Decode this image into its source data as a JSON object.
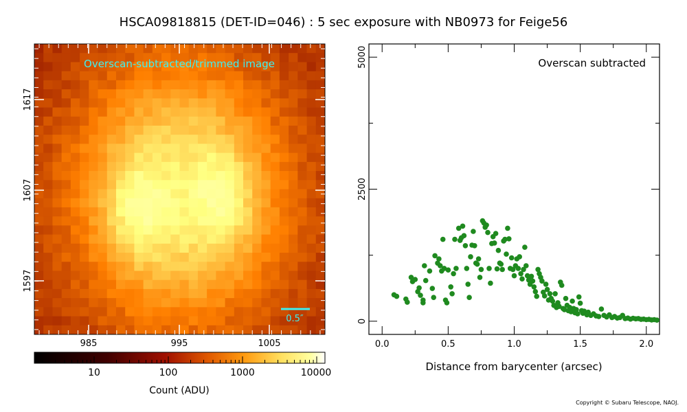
{
  "title": "HSCA09818815 (DET-ID=046) :  5 sec exposure with NB0973 for Feige56",
  "copyright": "Copyright © Subaru Telescope, NAOJ.",
  "image_panel": {
    "label": "Overscan-subtracted/trimmed image",
    "label_color": "#3ff0f0",
    "scale_bar_label": "0.5″",
    "x_ticks": [
      "985",
      "995",
      "1005"
    ],
    "y_ticks": [
      "1617",
      "1607",
      "1597"
    ],
    "colormap": "afmhot"
  },
  "colorbar": {
    "tick_labels": [
      "10",
      "100",
      "1000",
      "10000"
    ],
    "label": "Count (ADU)",
    "scale": "log"
  },
  "chart_data": {
    "type": "scatter",
    "annotation": "Overscan subtracted",
    "xlabel": "Distance from barycenter (arcsec)",
    "ylabel": "",
    "xlim": [
      -0.1,
      2.1
    ],
    "ylim": [
      -250,
      5250
    ],
    "x_ticks": [
      "0.0",
      "0.5",
      "1.0",
      "1.5",
      "2.0"
    ],
    "y_ticks": [
      "0",
      "2500",
      "5000"
    ],
    "marker_color": "#1f8a1f",
    "points": [
      [
        0.09,
        500
      ],
      [
        0.11,
        470
      ],
      [
        0.18,
        420
      ],
      [
        0.19,
        360
      ],
      [
        0.22,
        830
      ],
      [
        0.23,
        750
      ],
      [
        0.25,
        790
      ],
      [
        0.27,
        560
      ],
      [
        0.28,
        630
      ],
      [
        0.29,
        490
      ],
      [
        0.31,
        400
      ],
      [
        0.31,
        350
      ],
      [
        0.32,
        1050
      ],
      [
        0.33,
        770
      ],
      [
        0.36,
        950
      ],
      [
        0.38,
        620
      ],
      [
        0.39,
        450
      ],
      [
        0.4,
        1240
      ],
      [
        0.42,
        1100
      ],
      [
        0.43,
        1180
      ],
      [
        0.44,
        1050
      ],
      [
        0.45,
        950
      ],
      [
        0.46,
        1550
      ],
      [
        0.47,
        1000
      ],
      [
        0.48,
        400
      ],
      [
        0.49,
        350
      ],
      [
        0.5,
        970
      ],
      [
        0.52,
        650
      ],
      [
        0.53,
        520
      ],
      [
        0.54,
        900
      ],
      [
        0.55,
        1550
      ],
      [
        0.56,
        1000
      ],
      [
        0.58,
        1760
      ],
      [
        0.59,
        1530
      ],
      [
        0.6,
        1580
      ],
      [
        0.61,
        1800
      ],
      [
        0.62,
        1620
      ],
      [
        0.63,
        1430
      ],
      [
        0.64,
        1000
      ],
      [
        0.65,
        700
      ],
      [
        0.66,
        450
      ],
      [
        0.67,
        1220
      ],
      [
        0.68,
        1440
      ],
      [
        0.69,
        1700
      ],
      [
        0.7,
        1430
      ],
      [
        0.71,
        1100
      ],
      [
        0.72,
        1080
      ],
      [
        0.73,
        1180
      ],
      [
        0.74,
        830
      ],
      [
        0.75,
        980
      ],
      [
        0.76,
        1900
      ],
      [
        0.77,
        1860
      ],
      [
        0.78,
        1780
      ],
      [
        0.79,
        1820
      ],
      [
        0.8,
        1680
      ],
      [
        0.81,
        1000
      ],
      [
        0.82,
        720
      ],
      [
        0.83,
        1470
      ],
      [
        0.84,
        1600
      ],
      [
        0.85,
        1480
      ],
      [
        0.86,
        1660
      ],
      [
        0.87,
        990
      ],
      [
        0.88,
        1340
      ],
      [
        0.89,
        1100
      ],
      [
        0.9,
        1080
      ],
      [
        0.91,
        980
      ],
      [
        0.92,
        1520
      ],
      [
        0.93,
        1550
      ],
      [
        0.94,
        1270
      ],
      [
        0.95,
        1760
      ],
      [
        0.96,
        1560
      ],
      [
        0.97,
        1000
      ],
      [
        0.98,
        1200
      ],
      [
        0.99,
        980
      ],
      [
        1.0,
        860
      ],
      [
        1.01,
        1050
      ],
      [
        1.02,
        1180
      ],
      [
        1.03,
        1000
      ],
      [
        1.04,
        1220
      ],
      [
        1.05,
        900
      ],
      [
        1.06,
        800
      ],
      [
        1.07,
        980
      ],
      [
        1.08,
        1400
      ],
      [
        1.09,
        1050
      ],
      [
        1.1,
        860
      ],
      [
        1.11,
        780
      ],
      [
        1.12,
        700
      ],
      [
        1.13,
        850
      ],
      [
        1.14,
        760
      ],
      [
        1.15,
        650
      ],
      [
        1.16,
        560
      ],
      [
        1.17,
        470
      ],
      [
        1.18,
        980
      ],
      [
        1.19,
        900
      ],
      [
        1.2,
        830
      ],
      [
        1.21,
        760
      ],
      [
        1.22,
        550
      ],
      [
        1.23,
        480
      ],
      [
        1.24,
        700
      ],
      [
        1.25,
        600
      ],
      [
        1.26,
        400
      ],
      [
        1.27,
        520
      ],
      [
        1.28,
        430
      ],
      [
        1.29,
        380
      ],
      [
        1.3,
        300
      ],
      [
        1.31,
        520
      ],
      [
        1.32,
        260
      ],
      [
        1.33,
        350
      ],
      [
        1.34,
        280
      ],
      [
        1.35,
        740
      ],
      [
        1.36,
        680
      ],
      [
        1.37,
        240
      ],
      [
        1.38,
        220
      ],
      [
        1.39,
        430
      ],
      [
        1.4,
        300
      ],
      [
        1.41,
        200
      ],
      [
        1.42,
        260
      ],
      [
        1.43,
        180
      ],
      [
        1.44,
        380
      ],
      [
        1.45,
        240
      ],
      [
        1.46,
        160
      ],
      [
        1.47,
        220
      ],
      [
        1.48,
        140
      ],
      [
        1.49,
        460
      ],
      [
        1.5,
        340
      ],
      [
        1.51,
        200
      ],
      [
        1.52,
        150
      ],
      [
        1.53,
        190
      ],
      [
        1.55,
        120
      ],
      [
        1.56,
        170
      ],
      [
        1.58,
        110
      ],
      [
        1.6,
        140
      ],
      [
        1.62,
        100
      ],
      [
        1.64,
        90
      ],
      [
        1.66,
        230
      ],
      [
        1.68,
        110
      ],
      [
        1.7,
        80
      ],
      [
        1.72,
        120
      ],
      [
        1.74,
        70
      ],
      [
        1.76,
        90
      ],
      [
        1.78,
        60
      ],
      [
        1.8,
        70
      ],
      [
        1.82,
        110
      ],
      [
        1.84,
        50
      ],
      [
        1.86,
        60
      ],
      [
        1.88,
        40
      ],
      [
        1.9,
        55
      ],
      [
        1.92,
        45
      ],
      [
        1.94,
        50
      ],
      [
        1.96,
        35
      ],
      [
        1.98,
        40
      ],
      [
        2.0,
        30
      ],
      [
        2.02,
        35
      ],
      [
        2.04,
        25
      ],
      [
        2.06,
        30
      ],
      [
        2.08,
        20
      ]
    ]
  }
}
